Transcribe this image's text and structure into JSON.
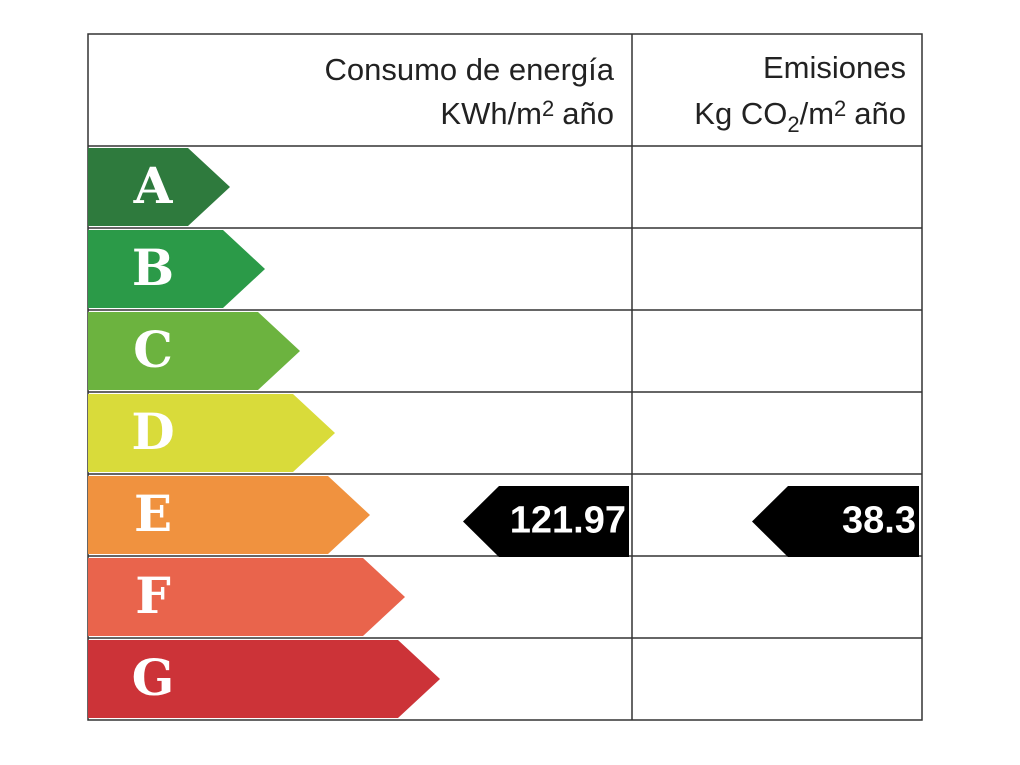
{
  "header": {
    "energy_title": "Consumo de energía",
    "energy_unit": [
      "KWh/m",
      "2",
      "año"
    ],
    "emissions_title": "Emisiones",
    "emissions_unit": [
      "Kg CO",
      "2",
      "/m",
      "2",
      "año"
    ]
  },
  "ratings": [
    {
      "letter": "A",
      "color": "#2e7a3d"
    },
    {
      "letter": "B",
      "color": "#2b9a48"
    },
    {
      "letter": "C",
      "color": "#6cb33f"
    },
    {
      "letter": "D",
      "color": "#d9db3a"
    },
    {
      "letter": "E",
      "color": "#f0923f"
    },
    {
      "letter": "F",
      "color": "#e9644c"
    },
    {
      "letter": "G",
      "color": "#cc3338"
    }
  ],
  "energy": {
    "rating": "E",
    "value": 121.97
  },
  "emissions": {
    "rating": "E",
    "value": 38.3
  }
}
